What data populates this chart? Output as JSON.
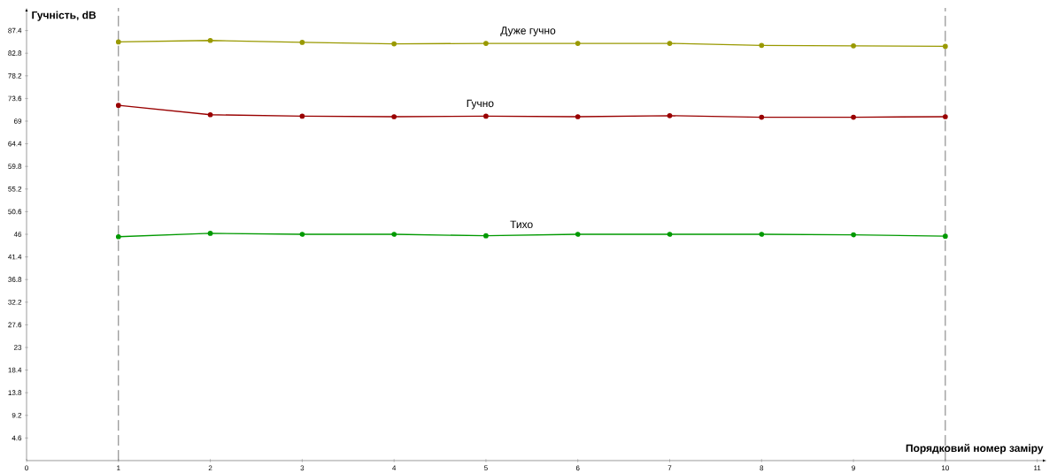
{
  "chart_data": {
    "type": "line",
    "xlabel": "Порядковий номер заміру",
    "ylabel": "Гучність, dB",
    "x": [
      1,
      2,
      3,
      4,
      5,
      6,
      7,
      8,
      9,
      10
    ],
    "series": [
      {
        "name": "Дуже гучно",
        "color": "#999900",
        "values": [
          85.1,
          85.4,
          85.0,
          84.7,
          84.8,
          84.8,
          84.8,
          84.4,
          84.3,
          84.2
        ]
      },
      {
        "name": "Гучно",
        "color": "#990000",
        "values": [
          72.2,
          70.3,
          70.0,
          69.9,
          70.0,
          69.9,
          70.1,
          69.8,
          69.8,
          69.9
        ]
      },
      {
        "name": "Тихо",
        "color": "#009900",
        "values": [
          45.5,
          46.2,
          46.0,
          46.0,
          45.7,
          46.0,
          46.0,
          46.0,
          45.9,
          45.6
        ]
      }
    ],
    "xlim": [
      0,
      11.1
    ],
    "ylim": [
      0,
      92
    ],
    "xticks": [
      0,
      1,
      2,
      3,
      4,
      5,
      6,
      7,
      8,
      9,
      10,
      11
    ],
    "yticks": [
      4.6,
      9.2,
      13.8,
      18.4,
      23,
      27.6,
      32.2,
      36.8,
      41.4,
      46,
      50.6,
      55.2,
      59.8,
      64.4,
      69,
      73.6,
      78.2,
      82.8,
      87.4
    ],
    "ref_lines": [
      {
        "axis": "x",
        "value": 1,
        "color": "#777777",
        "line_style": "dashed"
      },
      {
        "axis": "x",
        "value": 10,
        "color": "#777777",
        "line_style": "dashed"
      }
    ],
    "grid": false,
    "legend": false,
    "marker": "circle",
    "line_style": "solid"
  }
}
